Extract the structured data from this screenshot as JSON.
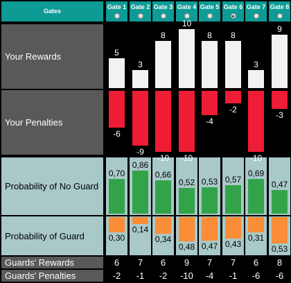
{
  "header": {
    "label": "Gates"
  },
  "gates": [
    {
      "label": "Gate 1",
      "selected": false,
      "reward": 5,
      "penalty": -6,
      "reward_text": "5",
      "penalty_text": "-6",
      "p_no_guard": 0.7,
      "p_no_guard_text": "0,70",
      "p_guard": 0.3,
      "p_guard_text": "0,30",
      "guard_reward": "6",
      "guard_penalty": "-2"
    },
    {
      "label": "Gate 2",
      "selected": false,
      "reward": 3,
      "penalty": -9,
      "reward_text": "3",
      "penalty_text": "-9",
      "p_no_guard": 0.86,
      "p_no_guard_text": "0,86",
      "p_guard": 0.14,
      "p_guard_text": "0,14",
      "guard_reward": "7",
      "guard_penalty": "-1"
    },
    {
      "label": "Gate 3",
      "selected": false,
      "reward": 8,
      "penalty": -10,
      "reward_text": "8",
      "penalty_text": "-10",
      "p_no_guard": 0.66,
      "p_no_guard_text": "0,66",
      "p_guard": 0.34,
      "p_guard_text": "0,34",
      "guard_reward": "6",
      "guard_penalty": "-2"
    },
    {
      "label": "Gate 4",
      "selected": false,
      "reward": 10,
      "penalty": -10,
      "reward_text": "10",
      "penalty_text": "-10",
      "p_no_guard": 0.52,
      "p_no_guard_text": "0,52",
      "p_guard": 0.48,
      "p_guard_text": "0,48",
      "guard_reward": "9",
      "guard_penalty": "-10"
    },
    {
      "label": "Gate 5",
      "selected": false,
      "reward": 8,
      "penalty": -4,
      "reward_text": "8",
      "penalty_text": "-4",
      "p_no_guard": 0.53,
      "p_no_guard_text": "0,53",
      "p_guard": 0.47,
      "p_guard_text": "0,47",
      "guard_reward": "7",
      "guard_penalty": "-4"
    },
    {
      "label": "Gate 6",
      "selected": true,
      "reward": 8,
      "penalty": -2,
      "reward_text": "8",
      "penalty_text": "-2",
      "p_no_guard": 0.57,
      "p_no_guard_text": "0,57",
      "p_guard": 0.43,
      "p_guard_text": "0,43",
      "guard_reward": "7",
      "guard_penalty": "-1"
    },
    {
      "label": "Gate 7",
      "selected": false,
      "reward": 3,
      "penalty": -10,
      "reward_text": "3",
      "penalty_text": "-10",
      "p_no_guard": 0.69,
      "p_no_guard_text": "0,69",
      "p_guard": 0.31,
      "p_guard_text": "0,31",
      "guard_reward": "6",
      "guard_penalty": "-6"
    },
    {
      "label": "Gate 8",
      "selected": false,
      "reward": 9,
      "penalty": -3,
      "reward_text": "9",
      "penalty_text": "-3",
      "p_no_guard": 0.47,
      "p_no_guard_text": "0,47",
      "p_guard": 0.53,
      "p_guard_text": "0,53",
      "guard_reward": "8",
      "guard_penalty": "-6"
    }
  ],
  "rows": {
    "your_rewards": "Your Rewards",
    "your_penalties": "Your Penalties",
    "prob_no_guard": "Probability of No Guard",
    "prob_guard": "Probability of Guard",
    "guards_rewards": "Guards' Rewards",
    "guards_penalties": "Guards' Penalties"
  },
  "colors": {
    "teal": "#0e9b96",
    "reward_bar": "#f2f2f2",
    "penalty_bar": "#ee1c34",
    "no_guard_bar": "#33a34a",
    "guard_bar": "#f98d38"
  }
}
